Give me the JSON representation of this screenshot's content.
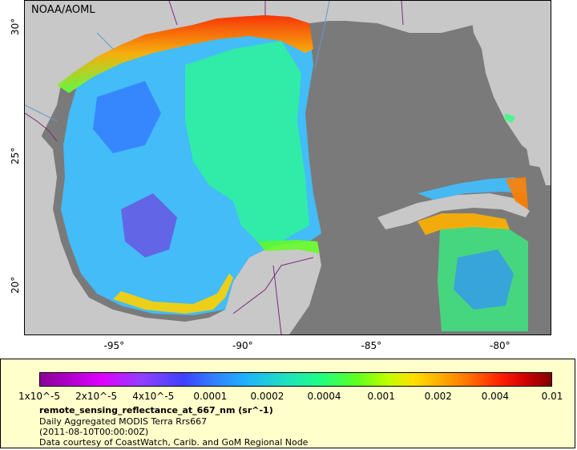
{
  "watermark": "NOAA/AOML",
  "lat_ticks": [
    {
      "label": "30°",
      "lat": 30
    },
    {
      "label": "25°",
      "lat": 25
    },
    {
      "label": "20°",
      "lat": 20
    }
  ],
  "lon_ticks": [
    {
      "label": "-95°",
      "lon": -95
    },
    {
      "label": "-90°",
      "lon": -90
    },
    {
      "label": "-85°",
      "lon": -85
    },
    {
      "label": "-80°",
      "lon": -80
    }
  ],
  "map_extent": {
    "lon_min": -98.5,
    "lon_max": -78.0,
    "lat_min": 18.0,
    "lat_max": 31.0
  },
  "colors": {
    "land": "#c8c8c8",
    "no_data": "#7a7a7a",
    "rivers": "#6699cc",
    "borders": "#7a2a7a",
    "legend_bg": "#ffffcc"
  },
  "colorbar": {
    "labels": [
      "1x10^-5",
      "2x10^-5",
      "4x10^-5",
      "0.0001",
      "0.0002",
      "0.0004",
      "0.001",
      "0.002",
      "0.004",
      "0.01"
    ]
  },
  "legend": {
    "title": "remote_sensing_reflectance_at_667_nm (sr^-1)",
    "line1": "Daily Aggregated MODIS Terra Rrs667",
    "line2": "(2011-08-10T00:00:00Z)",
    "line3": "Data courtesy of CoastWatch, Carib. and GoM Regional Node"
  }
}
